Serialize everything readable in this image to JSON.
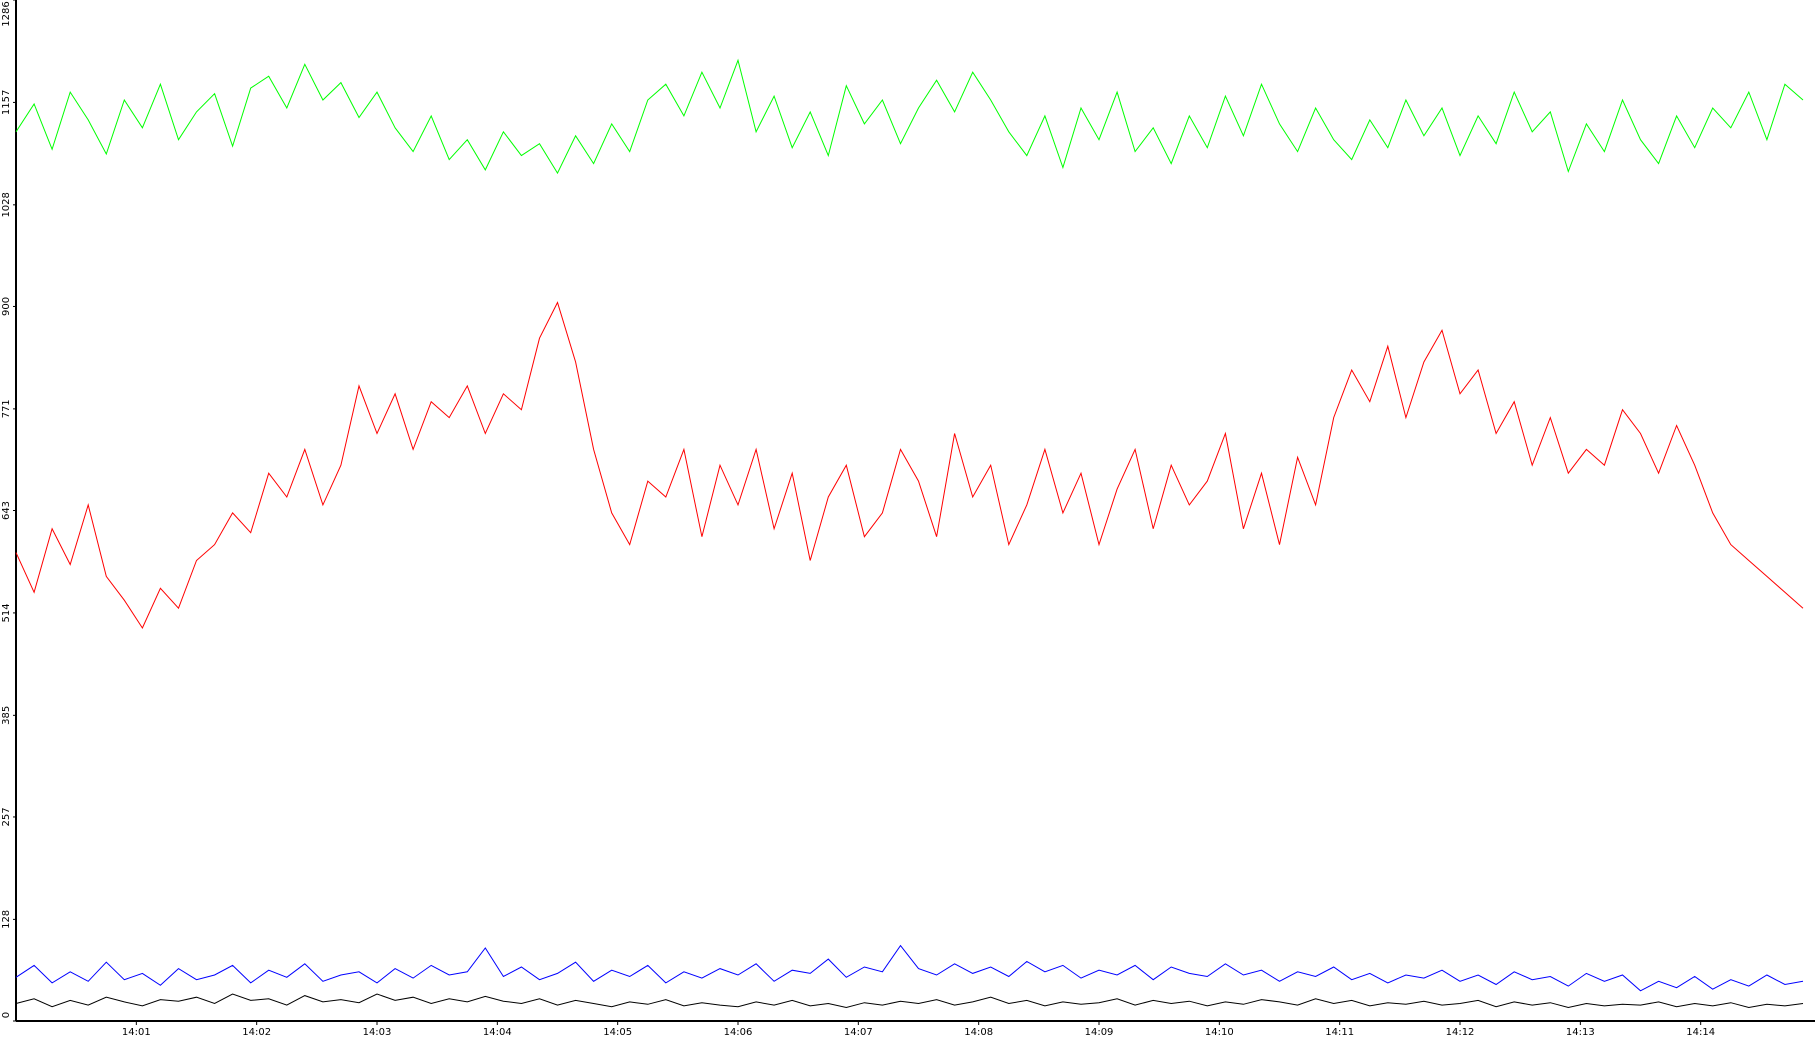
{
  "chart_data": {
    "type": "line",
    "x": [
      0,
      0.15,
      0.3,
      0.45,
      0.6,
      0.75,
      0.9,
      1.05,
      1.2,
      1.35,
      1.5,
      1.65,
      1.8,
      1.95,
      2.1,
      2.25,
      2.4,
      2.55,
      2.7,
      2.85,
      3,
      3.15,
      3.3,
      3.45,
      3.6,
      3.75,
      3.9,
      4.05,
      4.2,
      4.35,
      4.5,
      4.65,
      4.8,
      4.95,
      5.1,
      5.25,
      5.4,
      5.55,
      5.7,
      5.85,
      6,
      6.15,
      6.3,
      6.45,
      6.6,
      6.75,
      6.9,
      7.05,
      7.2,
      7.35,
      7.5,
      7.65,
      7.8,
      7.95,
      8.1,
      8.25,
      8.4,
      8.55,
      8.7,
      8.85,
      9,
      9.15,
      9.3,
      9.45,
      9.6,
      9.75,
      9.9,
      10.05,
      10.2,
      10.35,
      10.5,
      10.65,
      10.8,
      10.95,
      11.1,
      11.25,
      11.4,
      11.55,
      11.7,
      11.85,
      12,
      12.15,
      12.3,
      12.45,
      12.6,
      12.75,
      12.9,
      13.05,
      13.2,
      13.35,
      13.5,
      13.65,
      13.8,
      13.95,
      14.1,
      14.25,
      14.4,
      14.55,
      14.7,
      14.85
    ],
    "series": [
      {
        "color": "#00ff00",
        "values": [
          1120,
          1155,
          1098,
          1170,
          1135,
          1092,
          1160,
          1125,
          1180,
          1110,
          1145,
          1168,
          1102,
          1175,
          1190,
          1150,
          1205,
          1160,
          1182,
          1138,
          1170,
          1125,
          1095,
          1140,
          1085,
          1110,
          1072,
          1120,
          1090,
          1105,
          1068,
          1115,
          1080,
          1130,
          1095,
          1160,
          1180,
          1140,
          1195,
          1150,
          1210,
          1120,
          1165,
          1100,
          1145,
          1090,
          1178,
          1130,
          1160,
          1105,
          1150,
          1185,
          1145,
          1195,
          1160,
          1120,
          1090,
          1140,
          1075,
          1150,
          1110,
          1170,
          1095,
          1125,
          1080,
          1140,
          1100,
          1165,
          1115,
          1180,
          1130,
          1095,
          1150,
          1110,
          1085,
          1135,
          1100,
          1160,
          1115,
          1150,
          1090,
          1140,
          1105,
          1170,
          1120,
          1145,
          1070,
          1130,
          1095,
          1160,
          1110,
          1080,
          1140,
          1100,
          1150,
          1125,
          1170,
          1110,
          1180,
          1160
        ]
      },
      {
        "color": "#ff0000",
        "values": [
          590,
          540,
          620,
          575,
          650,
          560,
          530,
          495,
          545,
          520,
          580,
          600,
          640,
          615,
          690,
          660,
          720,
          650,
          700,
          800,
          740,
          790,
          720,
          780,
          760,
          800,
          740,
          790,
          770,
          860,
          905,
          830,
          720,
          640,
          600,
          680,
          660,
          720,
          610,
          700,
          650,
          720,
          620,
          690,
          580,
          660,
          700,
          610,
          640,
          720,
          680,
          610,
          740,
          660,
          700,
          600,
          650,
          720,
          640,
          690,
          600,
          670,
          720,
          620,
          700,
          650,
          680,
          740,
          620,
          690,
          600,
          710,
          650,
          760,
          820,
          780,
          850,
          760,
          830,
          870,
          790,
          820,
          740,
          780,
          700,
          760,
          690,
          720,
          700,
          770,
          740,
          690,
          750,
          700,
          640,
          600,
          580,
          560,
          540,
          520
        ]
      },
      {
        "color": "#0000ff",
        "values": [
          55,
          70,
          48,
          62,
          50,
          74,
          52,
          60,
          45,
          66,
          52,
          58,
          70,
          48,
          64,
          55,
          72,
          50,
          58,
          62,
          48,
          66,
          54,
          70,
          58,
          62,
          92,
          56,
          68,
          52,
          60,
          74,
          50,
          64,
          56,
          70,
          48,
          62,
          54,
          66,
          58,
          72,
          50,
          64,
          60,
          78,
          55,
          68,
          62,
          95,
          66,
          58,
          72,
          60,
          68,
          56,
          75,
          62,
          70,
          54,
          64,
          58,
          70,
          52,
          68,
          60,
          56,
          72,
          58,
          64,
          50,
          62,
          56,
          68,
          52,
          60,
          48,
          58,
          54,
          64,
          50,
          58,
          46,
          62,
          52,
          56,
          44,
          60,
          50,
          58,
          38,
          50,
          42,
          56,
          40,
          52,
          44,
          58,
          46,
          50
        ]
      },
      {
        "color": "#000000",
        "values": [
          22,
          28,
          18,
          26,
          20,
          30,
          24,
          19,
          27,
          25,
          30,
          22,
          34,
          26,
          28,
          20,
          32,
          24,
          27,
          23,
          34,
          26,
          30,
          22,
          28,
          24,
          31,
          25,
          22,
          28,
          20,
          26,
          22,
          18,
          24,
          21,
          27,
          19,
          23,
          20,
          18,
          24,
          20,
          26,
          19,
          22,
          17,
          23,
          20,
          25,
          22,
          27,
          20,
          24,
          30,
          22,
          26,
          19,
          24,
          21,
          23,
          28,
          20,
          26,
          22,
          25,
          19,
          24,
          21,
          27,
          24,
          20,
          28,
          22,
          26,
          19,
          23,
          21,
          25,
          20,
          22,
          26,
          18,
          24,
          20,
          23,
          17,
          22,
          19,
          21,
          20,
          24,
          18,
          22,
          19,
          23,
          17,
          21,
          19,
          22
        ]
      }
    ],
    "xlim": [
      0,
      14.95
    ],
    "xticks": [
      {
        "value": 1,
        "label": "14:01"
      },
      {
        "value": 2,
        "label": "14:02"
      },
      {
        "value": 3,
        "label": "14:03"
      },
      {
        "value": 4,
        "label": "14:04"
      },
      {
        "value": 5,
        "label": "14:05"
      },
      {
        "value": 6,
        "label": "14:06"
      },
      {
        "value": 7,
        "label": "14:07"
      },
      {
        "value": 8,
        "label": "14:08"
      },
      {
        "value": 9,
        "label": "14:09"
      },
      {
        "value": 10,
        "label": "14:10"
      },
      {
        "value": 11,
        "label": "14:11"
      },
      {
        "value": 12,
        "label": "14:12"
      },
      {
        "value": 13,
        "label": "14:13"
      },
      {
        "value": 14,
        "label": "14:14"
      }
    ],
    "ylim": [
      0,
      1286
    ],
    "yticks": [
      0,
      128,
      257,
      385,
      514,
      643,
      771,
      900,
      1028,
      1157,
      1286
    ]
  }
}
